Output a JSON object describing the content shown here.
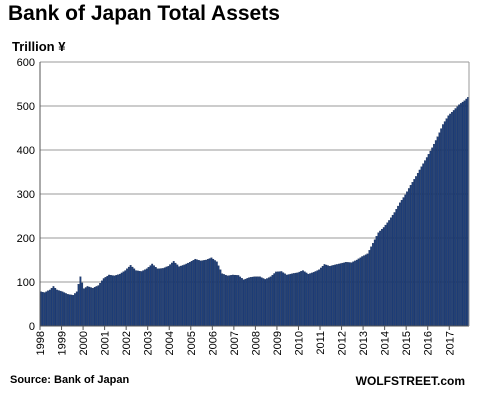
{
  "chart_data": {
    "type": "bar",
    "title": "Bank of Japan Total Assets",
    "ylabel": "Trillion ¥",
    "xlabel": "",
    "ylim": [
      0,
      600
    ],
    "yticks": [
      0,
      100,
      200,
      300,
      400,
      500,
      600
    ],
    "xtick_labels": [
      "1998",
      "1999",
      "2000",
      "2001",
      "2002",
      "2003",
      "2004",
      "2005",
      "2006",
      "2007",
      "2008",
      "2009",
      "2010",
      "2011",
      "2012",
      "2013",
      "2014",
      "2015",
      "2016",
      "2017"
    ],
    "grid": true,
    "legend": "none",
    "colors": {
      "bar": "#1f3f7a",
      "bar_edge": "#0c234d",
      "grid": "#9a9a9a"
    },
    "start": "1998-01",
    "frequency": "monthly",
    "anchors": [
      [
        "1998-01",
        78
      ],
      [
        "1998-03",
        76
      ],
      [
        "1998-06",
        82
      ],
      [
        "1998-08",
        90
      ],
      [
        "1998-10",
        82
      ],
      [
        "1999-01",
        78
      ],
      [
        "1999-04",
        72
      ],
      [
        "1999-07",
        70
      ],
      [
        "1999-09",
        78
      ],
      [
        "1999-11",
        112
      ],
      [
        "1999-12",
        98
      ],
      [
        "2000-01",
        85
      ],
      [
        "2000-03",
        90
      ],
      [
        "2000-06",
        86
      ],
      [
        "2000-09",
        92
      ],
      [
        "2000-12",
        108
      ],
      [
        "2001-03",
        116
      ],
      [
        "2001-06",
        114
      ],
      [
        "2001-09",
        118
      ],
      [
        "2001-12",
        126
      ],
      [
        "2002-03",
        138
      ],
      [
        "2002-06",
        126
      ],
      [
        "2002-09",
        124
      ],
      [
        "2002-12",
        130
      ],
      [
        "2003-03",
        141
      ],
      [
        "2003-06",
        130
      ],
      [
        "2003-09",
        131
      ],
      [
        "2003-12",
        136
      ],
      [
        "2004-03",
        147
      ],
      [
        "2004-06",
        135
      ],
      [
        "2004-09",
        139
      ],
      [
        "2004-12",
        145
      ],
      [
        "2005-03",
        152
      ],
      [
        "2005-06",
        148
      ],
      [
        "2005-09",
        150
      ],
      [
        "2005-12",
        155
      ],
      [
        "2006-03",
        146
      ],
      [
        "2006-06",
        119
      ],
      [
        "2006-09",
        114
      ],
      [
        "2006-12",
        116
      ],
      [
        "2007-03",
        115
      ],
      [
        "2007-06",
        105
      ],
      [
        "2007-09",
        110
      ],
      [
        "2007-12",
        112
      ],
      [
        "2008-03",
        112
      ],
      [
        "2008-06",
        106
      ],
      [
        "2008-09",
        112
      ],
      [
        "2008-12",
        123
      ],
      [
        "2009-03",
        124
      ],
      [
        "2009-06",
        116
      ],
      [
        "2009-09",
        119
      ],
      [
        "2009-12",
        121
      ],
      [
        "2010-03",
        126
      ],
      [
        "2010-06",
        118
      ],
      [
        "2010-09",
        122
      ],
      [
        "2010-12",
        128
      ],
      [
        "2011-03",
        140
      ],
      [
        "2011-06",
        136
      ],
      [
        "2011-09",
        139
      ],
      [
        "2011-12",
        142
      ],
      [
        "2012-03",
        145
      ],
      [
        "2012-06",
        144
      ],
      [
        "2012-09",
        150
      ],
      [
        "2012-12",
        158
      ],
      [
        "2013-03",
        164
      ],
      [
        "2013-06",
        188
      ],
      [
        "2013-09",
        212
      ],
      [
        "2013-12",
        224
      ],
      [
        "2014-03",
        240
      ],
      [
        "2014-06",
        258
      ],
      [
        "2014-09",
        280
      ],
      [
        "2014-12",
        298
      ],
      [
        "2015-03",
        320
      ],
      [
        "2015-06",
        340
      ],
      [
        "2015-09",
        362
      ],
      [
        "2015-12",
        383
      ],
      [
        "2016-03",
        405
      ],
      [
        "2016-06",
        430
      ],
      [
        "2016-09",
        458
      ],
      [
        "2016-12",
        478
      ],
      [
        "2017-03",
        490
      ],
      [
        "2017-06",
        503
      ],
      [
        "2017-09",
        512
      ],
      [
        "2017-11",
        520
      ]
    ]
  },
  "footer": {
    "source": "Source: Bank of Japan",
    "brand": "WOLFSTREET.com"
  }
}
